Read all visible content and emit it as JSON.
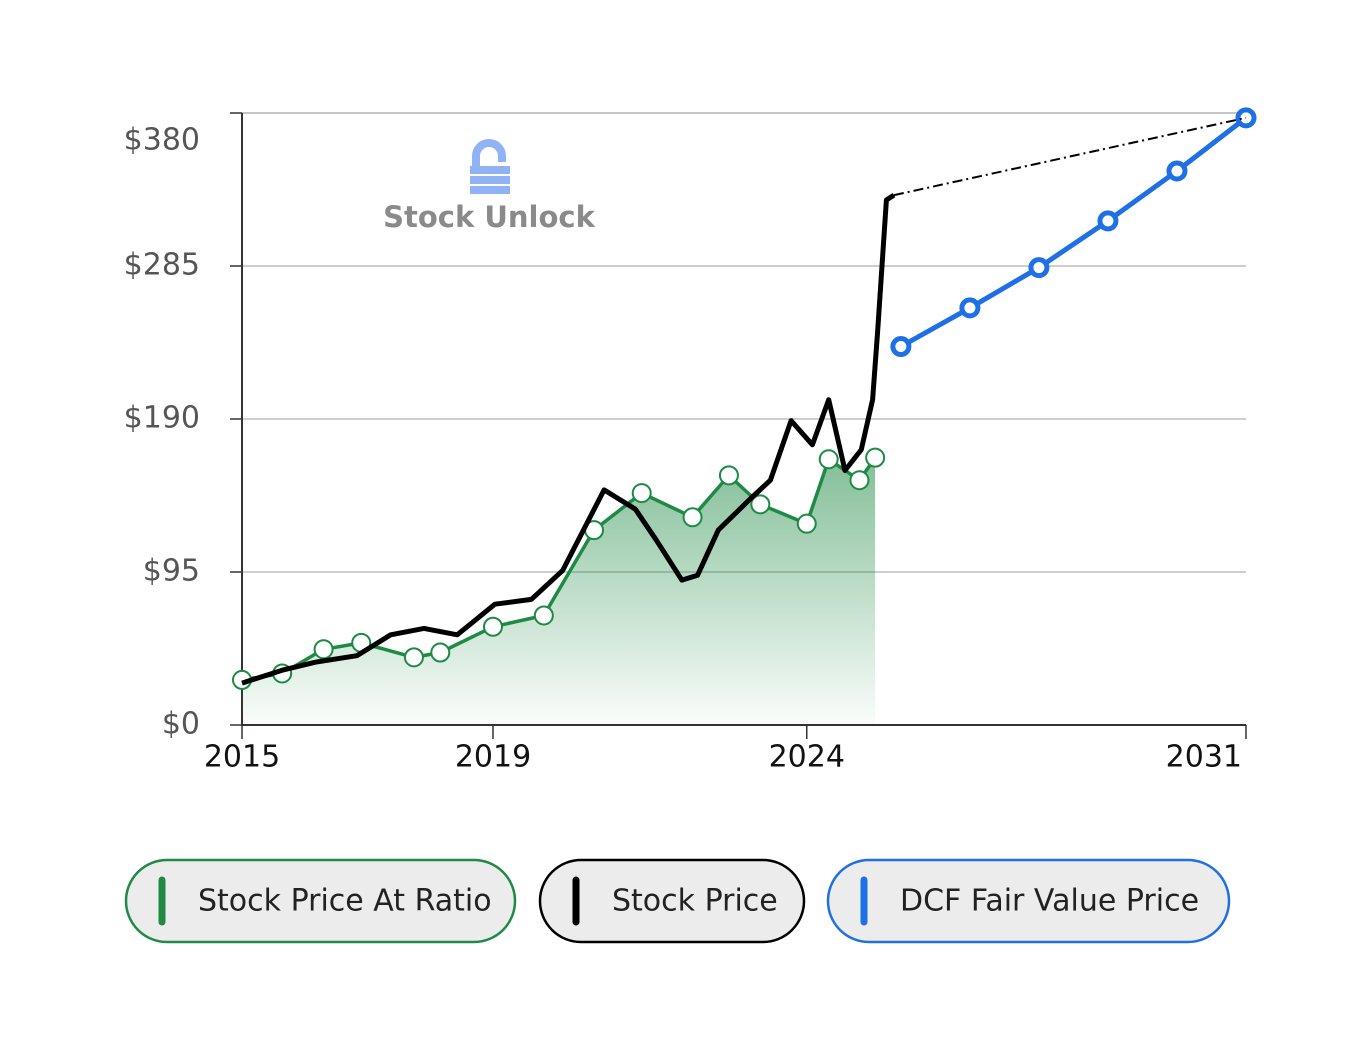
{
  "chart_data": {
    "type": "line",
    "watermark": "Stock Unlock",
    "xlim": [
      2015,
      2031
    ],
    "xticks": [
      2015,
      2019,
      2024,
      2031
    ],
    "ylim": [
      0,
      380
    ],
    "yticks": [
      {
        "value": 0,
        "label": "$0"
      },
      {
        "value": 95,
        "label": "$95"
      },
      {
        "value": 190,
        "label": "$190"
      },
      {
        "value": 285,
        "label": "$285"
      },
      {
        "value": 380,
        "label": "$380"
      }
    ],
    "grid": true,
    "series": [
      {
        "name": "Stock Price At Ratio",
        "color": "#1e8a44",
        "x": [
          2015.0,
          2015.64,
          2016.3,
          2016.9,
          2017.74,
          2018.16,
          2019.0,
          2019.81,
          2020.61,
          2021.37,
          2022.18,
          2022.76,
          2023.26,
          2024.0,
          2024.35,
          2024.84,
          2025.09
        ],
        "values": [
          28,
          32,
          47,
          51,
          42,
          45,
          61,
          68,
          121,
          144,
          129,
          155,
          137,
          125,
          165,
          152,
          166
        ]
      },
      {
        "name": "Stock Price",
        "color": "#000000",
        "x": [
          2015.0,
          2015.64,
          2016.17,
          2016.83,
          2017.37,
          2017.9,
          2018.43,
          2019.03,
          2019.61,
          2020.11,
          2020.77,
          2021.27,
          2021.6,
          2022.01,
          2022.26,
          2022.59,
          2023.09,
          2023.42,
          2023.75,
          2024.09,
          2024.35,
          2024.61,
          2024.87,
          2025.05,
          2025.13,
          2025.27,
          2025.39
        ],
        "values": [
          26,
          34,
          39,
          43,
          56,
          60,
          56,
          75,
          78,
          96,
          146,
          134,
          115,
          90,
          93,
          121,
          140,
          152,
          189,
          174,
          202,
          158,
          171,
          202,
          245,
          326,
          329
        ]
      },
      {
        "name": "DCF Fair Value Price",
        "color": "#1f6fe5",
        "x": [
          2025.5,
          2026.6,
          2027.7,
          2028.8,
          2029.9,
          2031
        ],
        "values": [
          235,
          259,
          284,
          313,
          344,
          377
        ]
      }
    ]
  }
}
